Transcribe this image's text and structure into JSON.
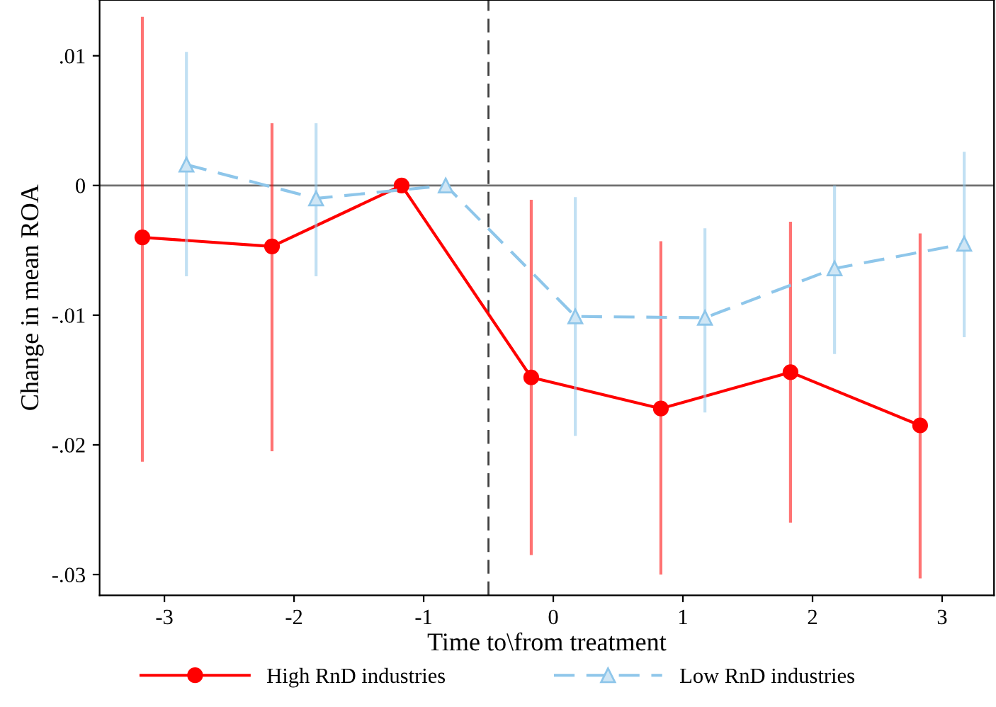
{
  "chart_data": {
    "type": "line",
    "xlabel": "Time to\\from treatment",
    "ylabel": "Change in mean ROA",
    "xlim": [
      -3.5,
      3.4
    ],
    "xticks": [
      -3,
      -2,
      -1,
      0,
      1,
      2,
      3
    ],
    "ylim": [
      -0.0316,
      0.0143
    ],
    "yticks": [
      {
        "value": 0.01,
        "label": ".01"
      },
      0,
      {
        "value": -0.01,
        "label": "-.01"
      },
      {
        "value": -0.02,
        "label": "-.02"
      },
      {
        "value": -0.03,
        "label": "-.03"
      }
    ],
    "series": [
      {
        "name": "High RnD industries",
        "color": "#ff0000",
        "marker": "circle",
        "line_style": "solid",
        "x": [
          -3.17,
          -2.17,
          -1.17,
          -0.17,
          0.83,
          1.83,
          2.83
        ],
        "values": [
          -0.004,
          -0.0047,
          0,
          -0.0148,
          -0.0172,
          -0.0144,
          -0.0185
        ],
        "errors": [
          [
            -0.0213,
            0.013
          ],
          [
            -0.0205,
            0.0048
          ],
          null,
          [
            -0.0285,
            -0.0011
          ],
          [
            -0.03,
            -0.0043
          ],
          [
            -0.026,
            -0.0028
          ],
          [
            -0.0303,
            -0.0037
          ]
        ]
      },
      {
        "name": "Low RnD industries",
        "color": "#8ec6ea",
        "marker": "triangle",
        "line_style": "dashed",
        "x": [
          -2.83,
          -1.83,
          -0.83,
          0.17,
          1.17,
          2.17,
          3.17
        ],
        "values": [
          0.0016,
          -0.001,
          0,
          -0.0101,
          -0.0102,
          -0.0064,
          -0.0045
        ],
        "errors": [
          [
            -0.007,
            0.0103
          ],
          [
            -0.007,
            0.0048
          ],
          null,
          [
            -0.0193,
            -0.0009
          ],
          [
            -0.0175,
            -0.0033
          ],
          [
            -0.013,
            0
          ],
          [
            -0.0117,
            0.0026
          ]
        ]
      }
    ],
    "ref_lines": [
      {
        "axis": "y",
        "value": 0,
        "color": "#707070",
        "line_style": "solid"
      },
      {
        "axis": "x",
        "value": -0.5,
        "color": "#404040",
        "line_style": "dashed"
      }
    ],
    "grid": false,
    "legend": "bottom"
  }
}
